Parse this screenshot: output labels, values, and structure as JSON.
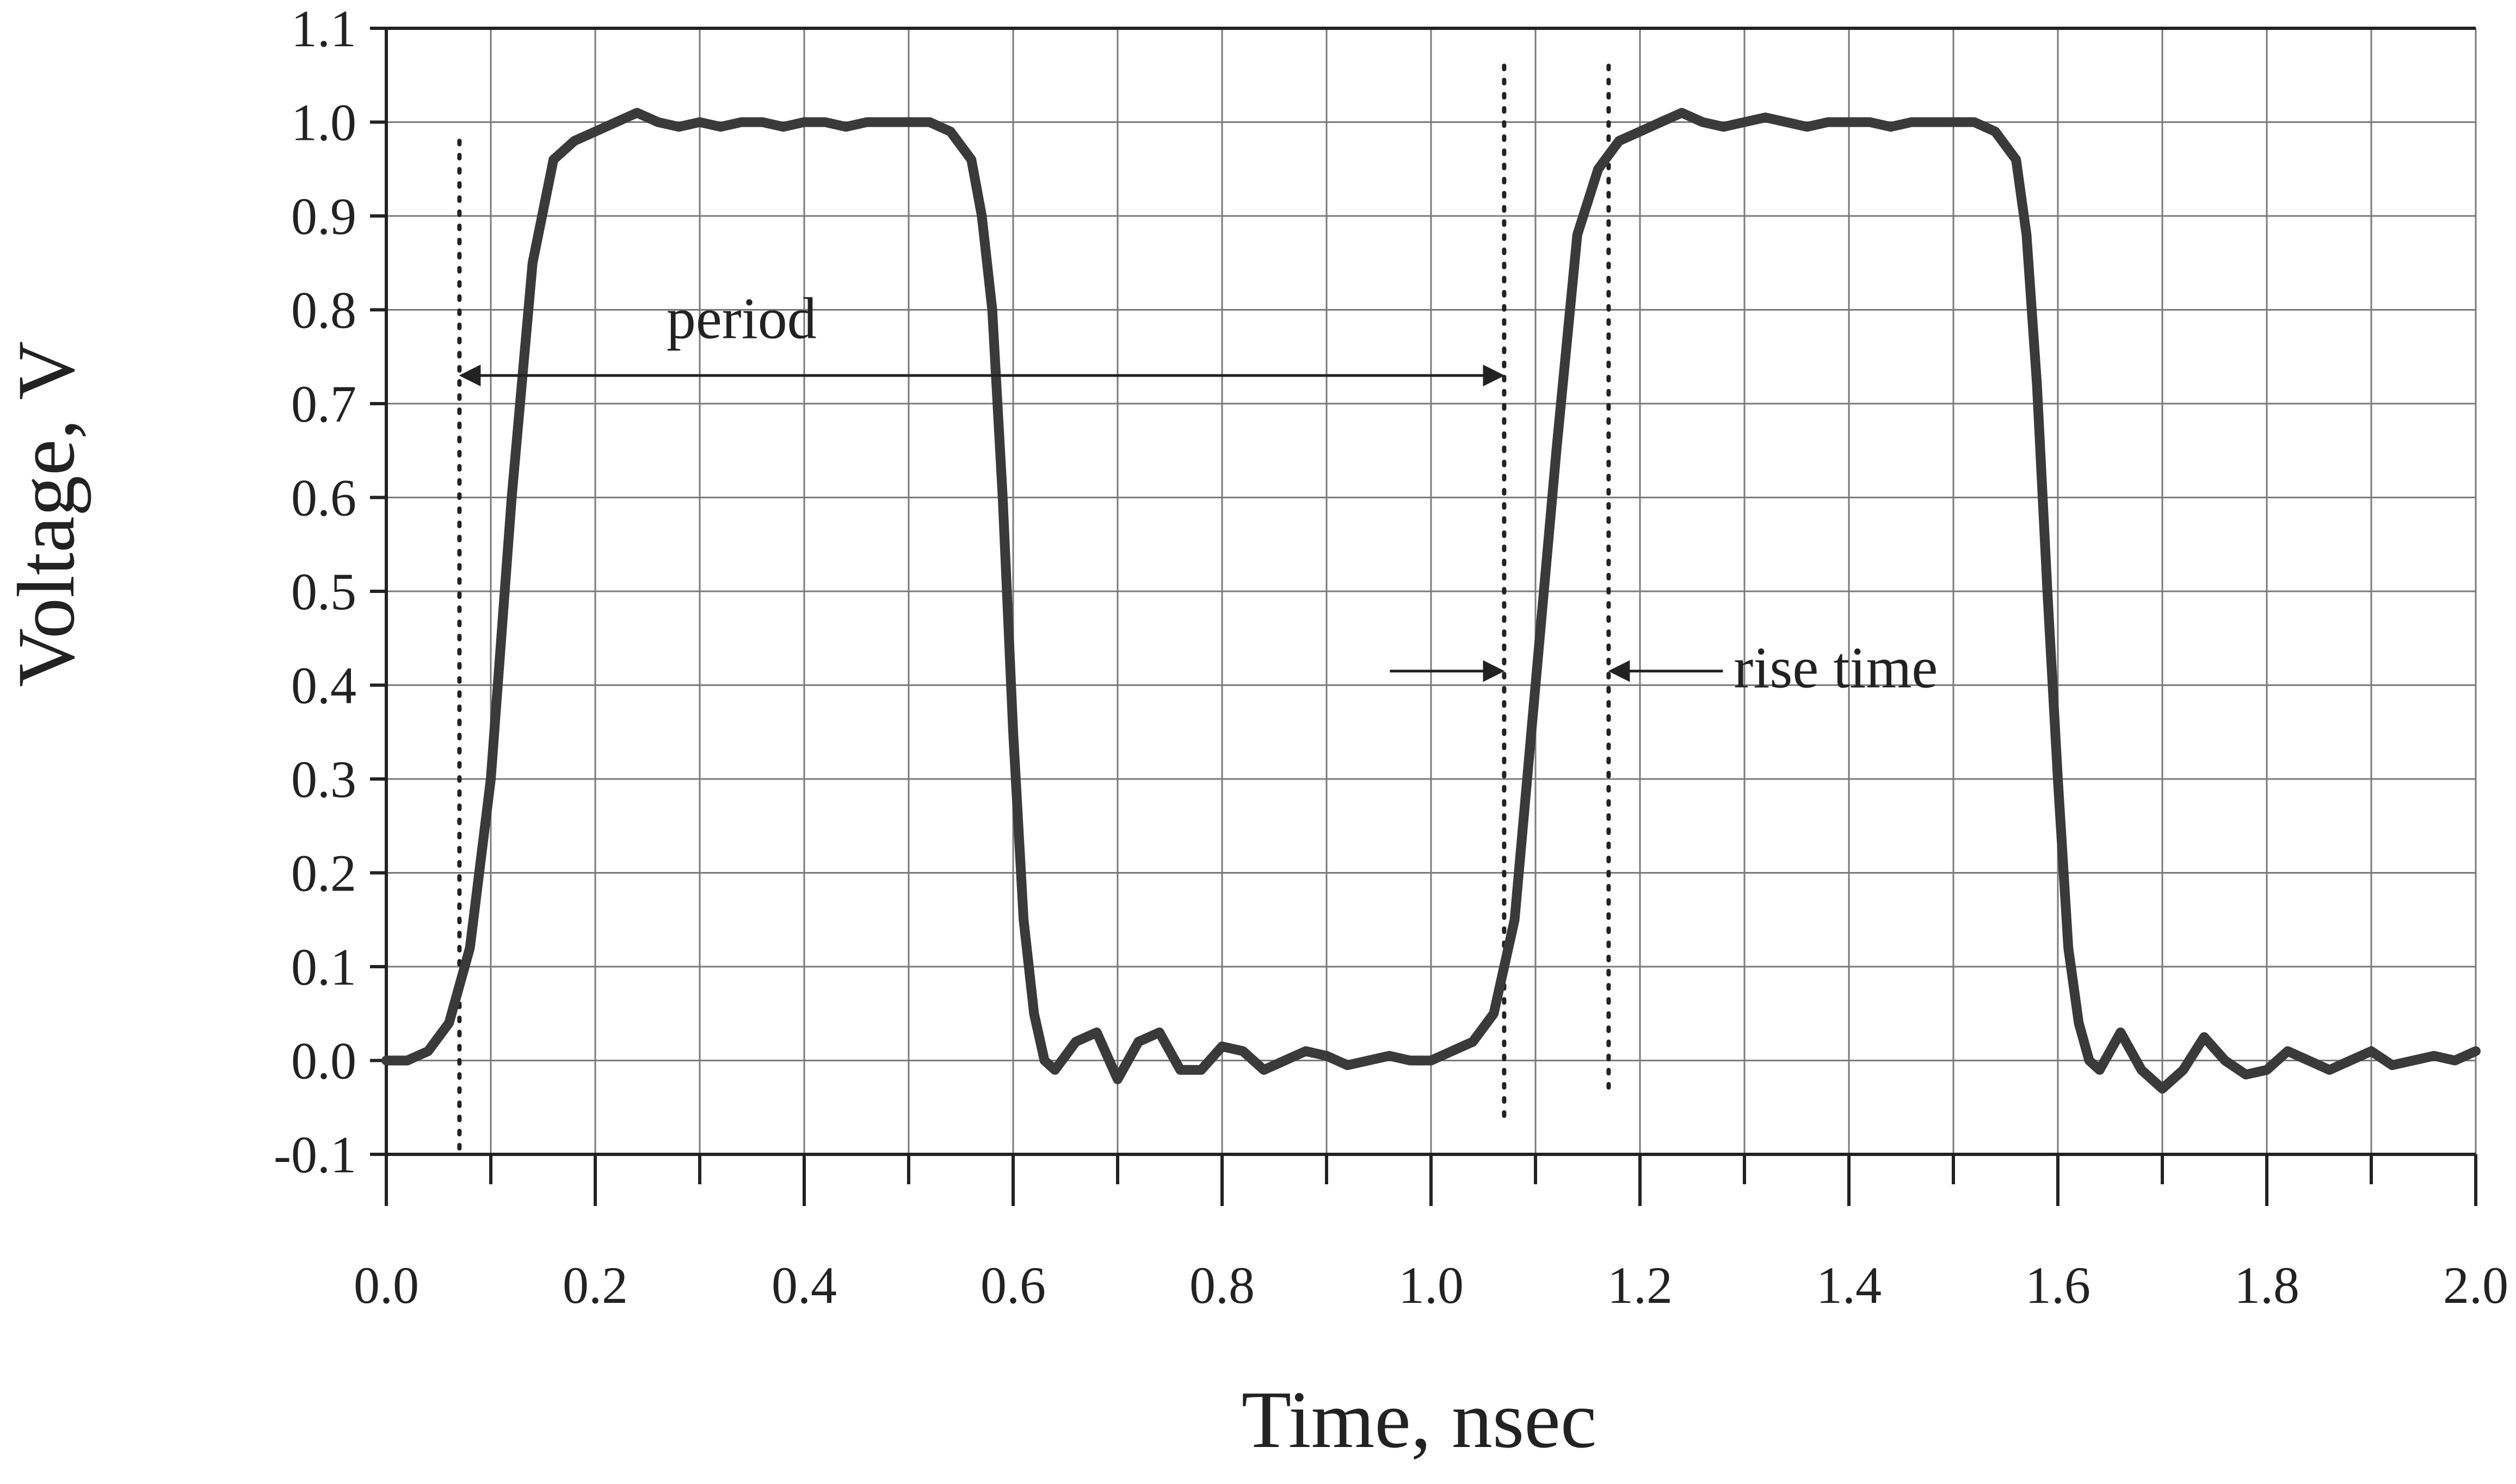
{
  "chart_data": {
    "type": "line",
    "xlabel": "Time, nsec",
    "ylabel": "Voltage, V",
    "xlim": [
      0.0,
      2.0
    ],
    "ylim": [
      -0.1,
      1.1
    ],
    "x_ticks": [
      "0.0",
      "0.2",
      "0.4",
      "0.6",
      "0.8",
      "1.0",
      "1.2",
      "1.4",
      "1.6",
      "1.8",
      "2.0"
    ],
    "y_ticks": [
      "-0.1",
      "0.0",
      "0.1",
      "0.2",
      "0.3",
      "0.4",
      "0.5",
      "0.6",
      "0.7",
      "0.8",
      "0.9",
      "1.0",
      "1.1"
    ],
    "grid": true,
    "color": "#3a3a3a",
    "series": [
      {
        "x": [
          0.0,
          0.02,
          0.04,
          0.06,
          0.08,
          0.1,
          0.12,
          0.14,
          0.16,
          0.18,
          0.2,
          0.22,
          0.24,
          0.26,
          0.28,
          0.3,
          0.32,
          0.34,
          0.36,
          0.38,
          0.4,
          0.42,
          0.44,
          0.46,
          0.48,
          0.5,
          0.52,
          0.54,
          0.56,
          0.57,
          0.58,
          0.59,
          0.6,
          0.61,
          0.62,
          0.63,
          0.64,
          0.66,
          0.68,
          0.7,
          0.72,
          0.74,
          0.76,
          0.78,
          0.8,
          0.82,
          0.84,
          0.86,
          0.88,
          0.9,
          0.92,
          0.94,
          0.96,
          0.98,
          1.0,
          1.02,
          1.04,
          1.06,
          1.08,
          1.1,
          1.12,
          1.14,
          1.16,
          1.18,
          1.2,
          1.22,
          1.24,
          1.26,
          1.28,
          1.3,
          1.32,
          1.34,
          1.36,
          1.38,
          1.4,
          1.42,
          1.44,
          1.46,
          1.48,
          1.5,
          1.52,
          1.54,
          1.56,
          1.57,
          1.58,
          1.59,
          1.6,
          1.61,
          1.62,
          1.63,
          1.64,
          1.66,
          1.68,
          1.7,
          1.72,
          1.74,
          1.76,
          1.78,
          1.8,
          1.82,
          1.84,
          1.86,
          1.88,
          1.9,
          1.92,
          1.94,
          1.96,
          1.98,
          2.0
        ],
        "y": [
          0.0,
          0.0,
          0.01,
          0.04,
          0.12,
          0.3,
          0.6,
          0.85,
          0.96,
          0.98,
          0.99,
          1.0,
          1.01,
          1.0,
          0.995,
          1.0,
          0.995,
          1.0,
          1.0,
          0.995,
          1.0,
          1.0,
          0.995,
          1.0,
          1.0,
          1.0,
          1.0,
          0.99,
          0.96,
          0.9,
          0.8,
          0.6,
          0.35,
          0.15,
          0.05,
          0.0,
          -0.01,
          0.02,
          0.03,
          -0.02,
          0.02,
          0.03,
          -0.01,
          -0.01,
          0.015,
          0.01,
          -0.01,
          0.0,
          0.01,
          0.005,
          -0.005,
          0.0,
          0.005,
          0.0,
          0.0,
          0.01,
          0.02,
          0.05,
          0.15,
          0.4,
          0.65,
          0.88,
          0.95,
          0.98,
          0.99,
          1.0,
          1.01,
          1.0,
          0.995,
          1.0,
          1.005,
          1.0,
          0.995,
          1.0,
          1.0,
          1.0,
          0.995,
          1.0,
          1.0,
          1.0,
          1.0,
          0.99,
          0.96,
          0.88,
          0.72,
          0.5,
          0.3,
          0.12,
          0.04,
          0.0,
          -0.01,
          0.03,
          -0.01,
          -0.03,
          -0.01,
          0.025,
          0.0,
          -0.015,
          -0.01,
          0.01,
          0.0,
          -0.01,
          0.0,
          0.01,
          -0.005,
          0.0,
          0.005,
          0.0,
          0.01
        ]
      }
    ],
    "annotations": [
      {
        "text": "period",
        "from_x": 0.07,
        "to_x": 1.07,
        "y": 0.73
      },
      {
        "text": "rise time",
        "from_x": 1.07,
        "to_x": 1.17,
        "y": 0.415
      }
    ],
    "reference_lines_x": [
      0.07,
      1.07,
      1.17
    ]
  }
}
